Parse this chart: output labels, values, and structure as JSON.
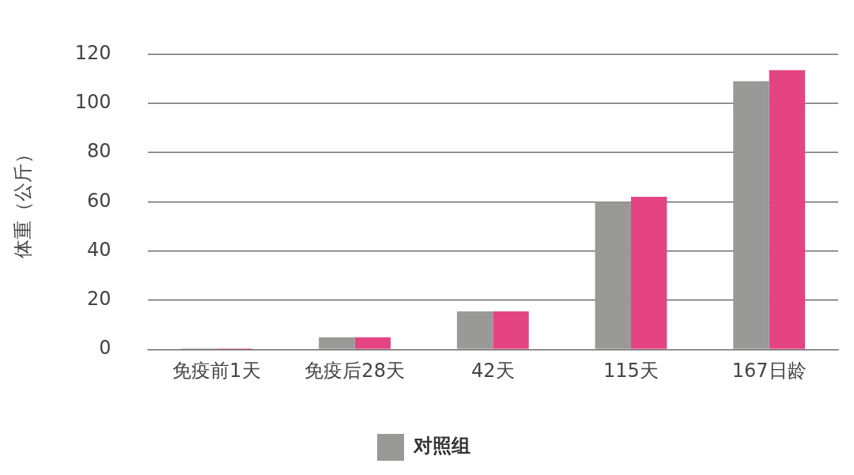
{
  "chart_data": {
    "type": "bar",
    "ylabel": "体重（公斤）",
    "categories": [
      "免疫前1天",
      "免疫后28天",
      "42天",
      "115天",
      "167日龄"
    ],
    "series": [
      {
        "name": "对照组",
        "color": "#999997",
        "values": [
          0.5,
          5,
          15.5,
          60,
          109
        ]
      },
      {
        "color": "#e44582",
        "values": [
          0.5,
          5,
          15.5,
          62,
          113.5
        ]
      }
    ],
    "ylim": [
      0,
      120
    ],
    "yticks": [
      0,
      20,
      40,
      60,
      80,
      100,
      120
    ],
    "grid": "y",
    "legend": "bottom"
  }
}
